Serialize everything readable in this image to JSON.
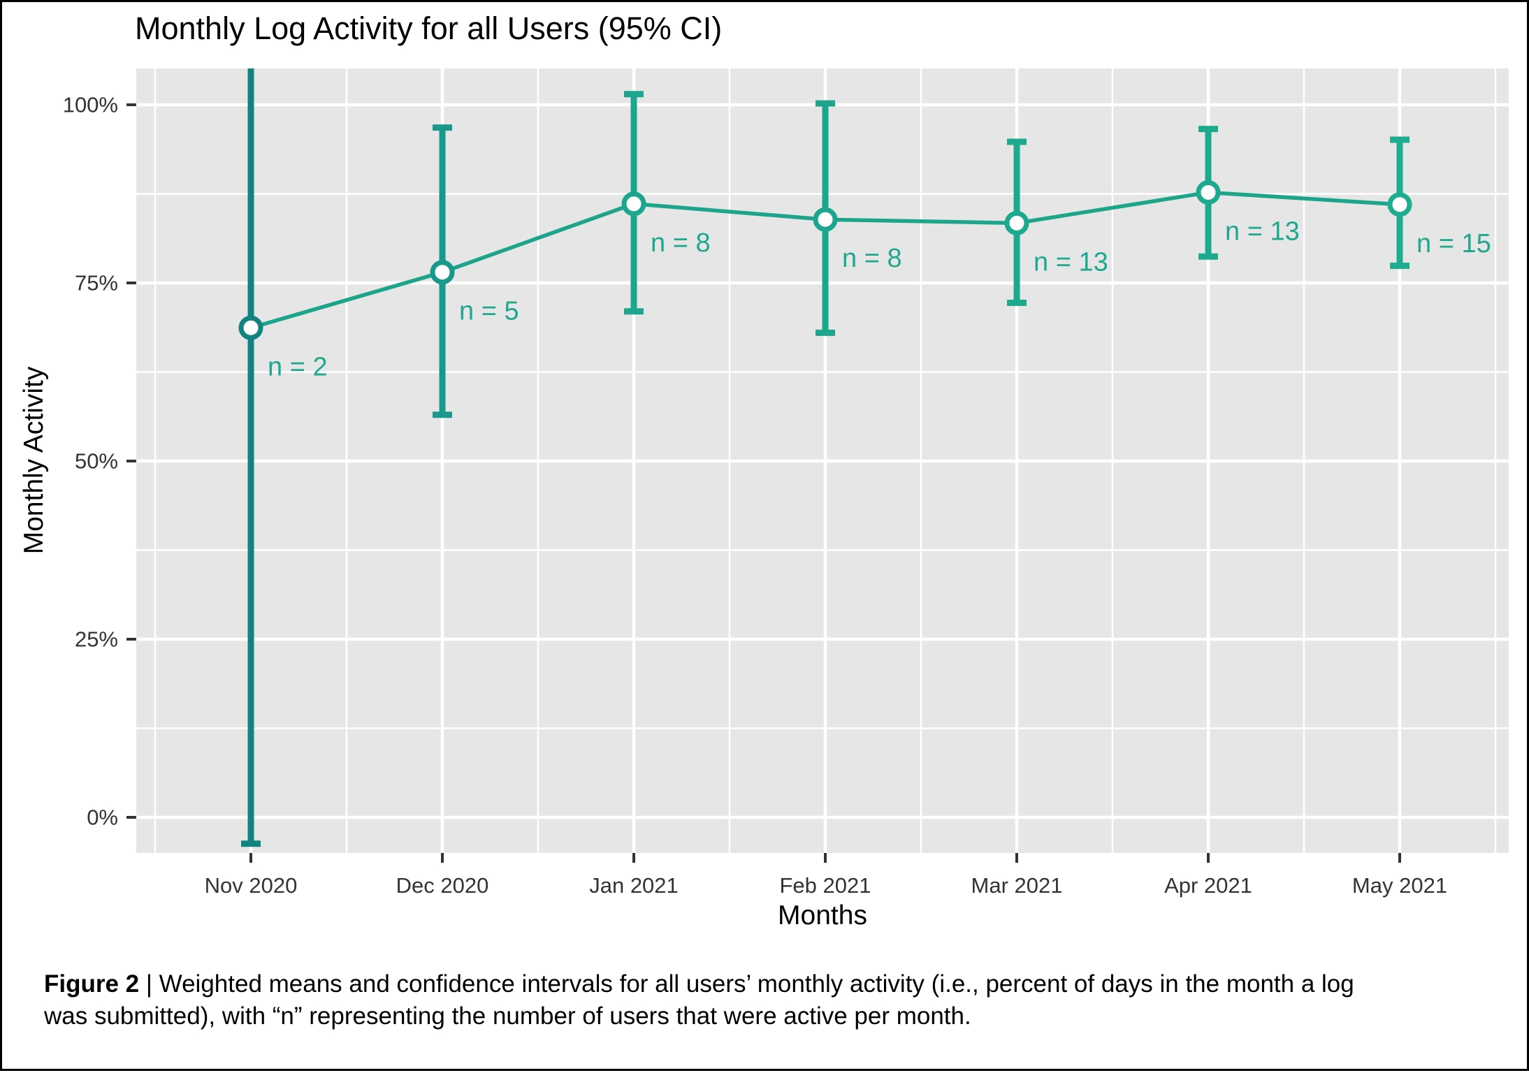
{
  "figure": {
    "title": "Monthly Log Activity for all Users (95% CI)",
    "x_axis_label": "Months",
    "y_axis_label": "Monthly Activity"
  },
  "caption": {
    "bold": "Figure 2",
    "rest": " | Weighted means and confidence intervals for all users’ monthly activity (i.e., percent of days in the month a log was submitted), with “n” representing the number of users that were active per month."
  },
  "style": {
    "panel_bg": "#E6E6E6",
    "grid_color": "#FFFFFF",
    "tick_mark_color": "#333333",
    "tick_text_color": "#333333",
    "line_color": "#1CA58B",
    "n_label_color": "#20A88E",
    "point_fill": "#FFFFFF"
  },
  "chart_data": {
    "type": "line",
    "title": "Monthly Log Activity for all Users (95% CI)",
    "xlabel": "Months",
    "ylabel": "Monthly Activity",
    "error_bars": "95% confidence interval",
    "grid": true,
    "legend": "none",
    "ylim": [
      -5.1,
      105.1
    ],
    "y_tick_values": [
      0,
      25,
      50,
      75,
      100
    ],
    "y_tick_labels": [
      "0%",
      "25%",
      "50%",
      "75%",
      "100%"
    ],
    "y_minor_tick_values": [
      12.5,
      37.5,
      62.5,
      87.5
    ],
    "categories": [
      "Nov 2020",
      "Dec 2020",
      "Jan 2021",
      "Feb 2021",
      "Mar 2021",
      "Apr 2021",
      "May 2021"
    ],
    "points": [
      {
        "month": "Nov 2020",
        "n": 2,
        "n_label": "n = 2",
        "mean": 68.7,
        "ci_low": -3.7,
        "ci_high": 105.1,
        "ci_high_clipped": true,
        "color": "#118380"
      },
      {
        "month": "Dec 2020",
        "n": 5,
        "n_label": "n = 5",
        "mean": 76.5,
        "ci_low": 56.5,
        "ci_high": 96.8,
        "ci_high_clipped": false,
        "color": "#18998B"
      },
      {
        "month": "Jan 2021",
        "n": 8,
        "n_label": "n = 8",
        "mean": 86.1,
        "ci_low": 71.0,
        "ci_high": 101.5,
        "ci_high_clipped": false,
        "color": "#1BA68D"
      },
      {
        "month": "Feb 2021",
        "n": 8,
        "n_label": "n = 8",
        "mean": 83.9,
        "ci_low": 68.0,
        "ci_high": 100.2,
        "ci_high_clipped": false,
        "color": "#1BA68D"
      },
      {
        "month": "Mar 2021",
        "n": 13,
        "n_label": "n = 13",
        "mean": 83.4,
        "ci_low": 72.2,
        "ci_high": 94.8,
        "ci_high_clipped": false,
        "color": "#1CAA8E"
      },
      {
        "month": "Apr 2021",
        "n": 13,
        "n_label": "n = 13",
        "mean": 87.7,
        "ci_low": 78.7,
        "ci_high": 96.6,
        "ci_high_clipped": false,
        "color": "#1CAA8E"
      },
      {
        "month": "May 2021",
        "n": 15,
        "n_label": "n = 15",
        "mean": 86.0,
        "ci_low": 77.4,
        "ci_high": 95.1,
        "ci_high_clipped": false,
        "color": "#1FAD90"
      }
    ]
  }
}
